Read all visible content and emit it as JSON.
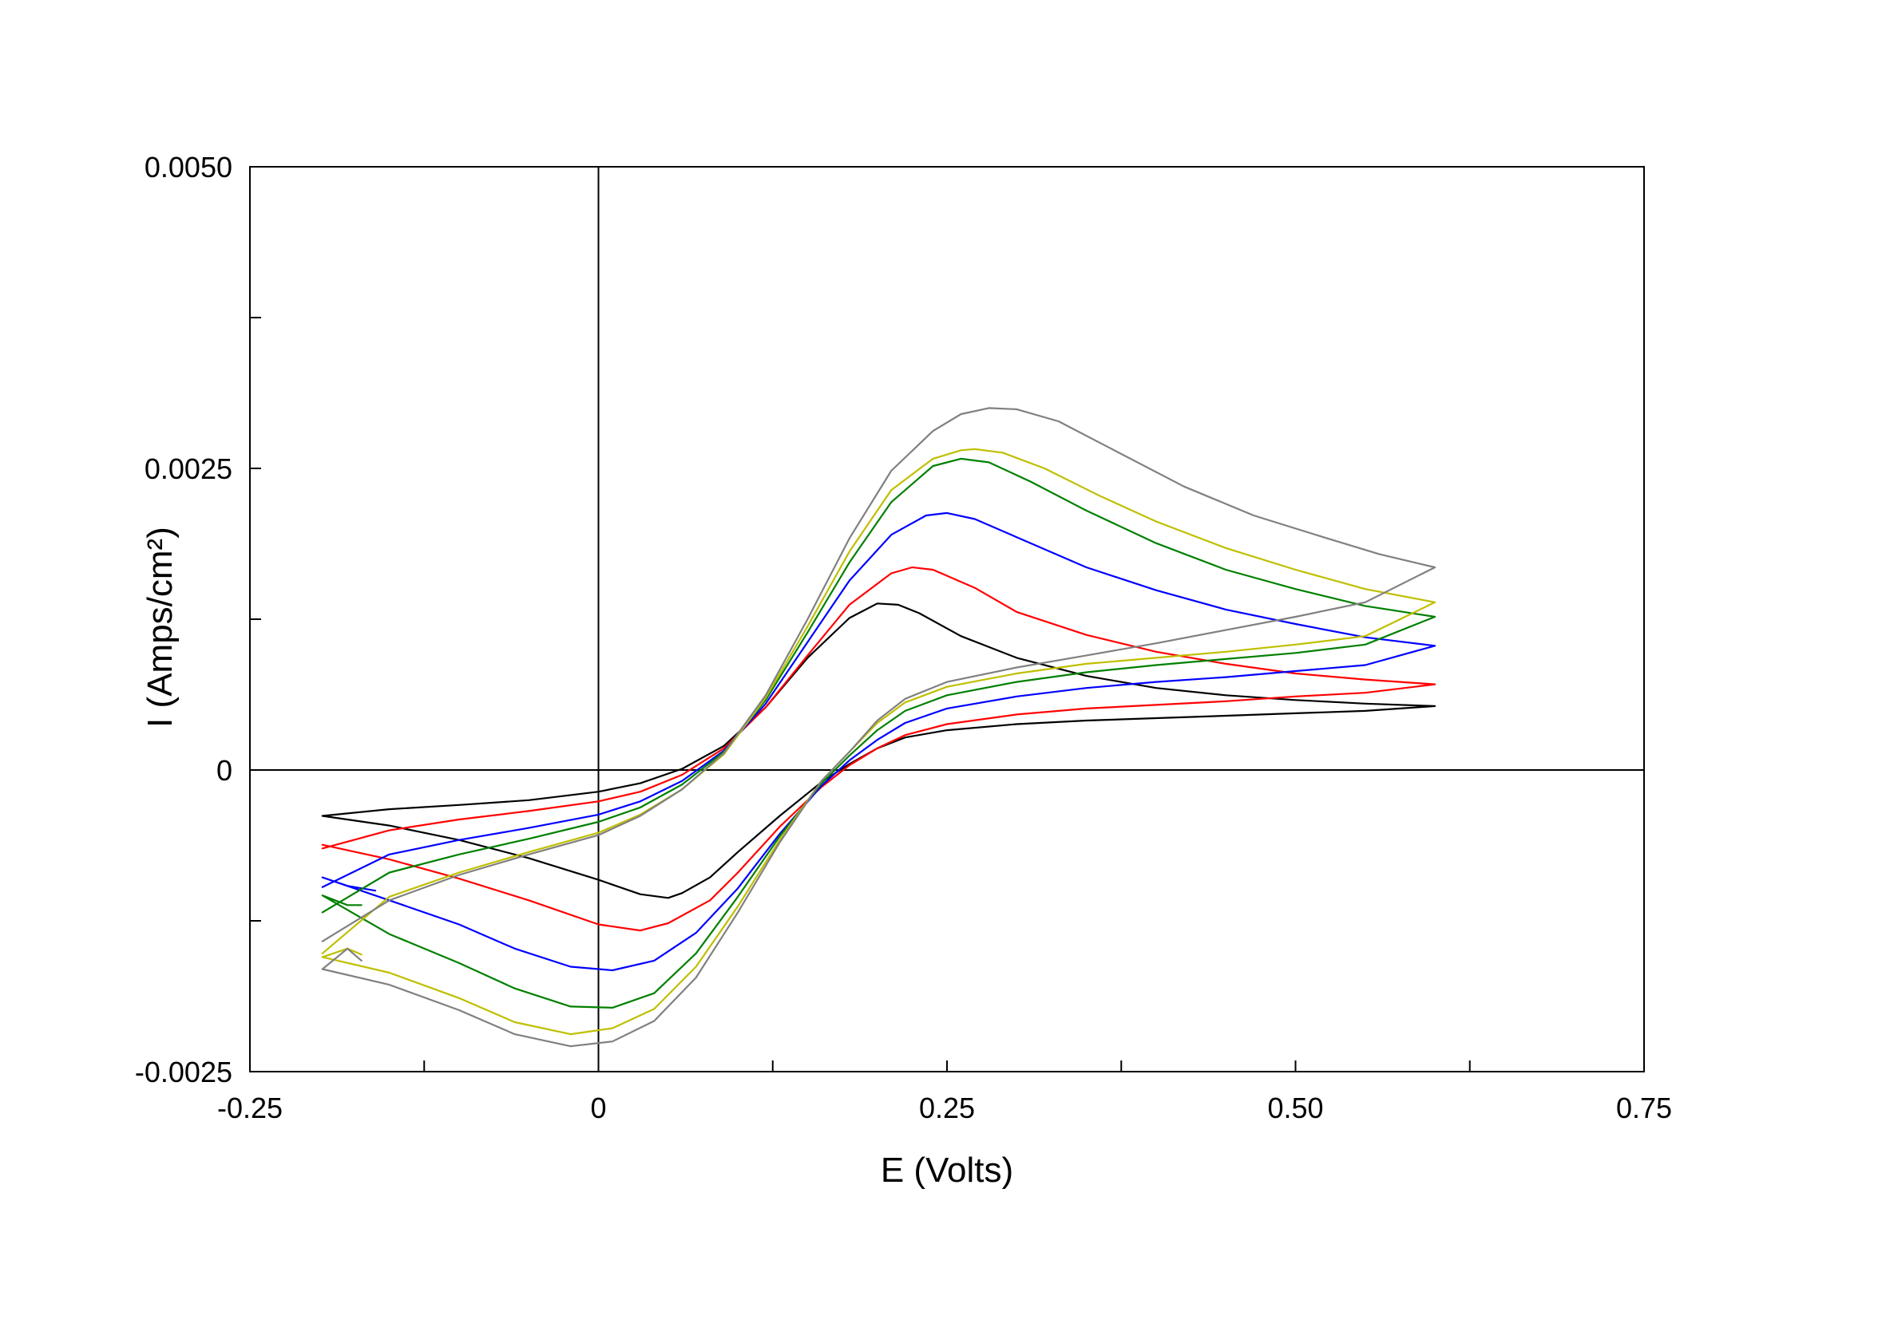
{
  "chart_data": {
    "type": "line",
    "title": "",
    "xlabel": "E (Volts)",
    "ylabel": "I (Amps/cm²)",
    "xlim": [
      -0.25,
      0.75
    ],
    "ylim": [
      -0.0025,
      0.005
    ],
    "x_ticks": [
      {
        "value": -0.25,
        "label": "-0.25"
      },
      {
        "value": 0,
        "label": "0"
      },
      {
        "value": 0.25,
        "label": "0.25"
      },
      {
        "value": 0.5,
        "label": "0.50"
      },
      {
        "value": 0.75,
        "label": "0.75"
      }
    ],
    "x_minor_ticks": [
      -0.125,
      0.125,
      0.375,
      0.625
    ],
    "y_ticks": [
      {
        "value": -0.0025,
        "label": "-0.0025"
      },
      {
        "value": 0,
        "label": "0"
      },
      {
        "value": 0.0025,
        "label": "0.0025"
      },
      {
        "value": 0.005,
        "label": "0.0050"
      }
    ],
    "y_minor_ticks": [
      -0.00125,
      0.00125,
      0.00375
    ],
    "zero_lines": true,
    "grid": false,
    "legend": "none",
    "series": [
      {
        "color": "#000000",
        "points": [
          [
            -0.198,
            -0.00038
          ],
          [
            -0.15,
            -0.000325
          ],
          [
            -0.1,
            -0.00029
          ],
          [
            -0.05,
            -0.00025
          ],
          [
            0,
            -0.00018
          ],
          [
            0.03,
            -0.00011
          ],
          [
            0.06,
            1e-05
          ],
          [
            0.09,
            0.0002
          ],
          [
            0.12,
            0.00052
          ],
          [
            0.15,
            0.00093
          ],
          [
            0.18,
            0.00126
          ],
          [
            0.2,
            0.00138
          ],
          [
            0.215,
            0.00137
          ],
          [
            0.23,
            0.0013
          ],
          [
            0.26,
            0.00111
          ],
          [
            0.3,
            0.00093
          ],
          [
            0.35,
            0.00078
          ],
          [
            0.4,
            0.00068
          ],
          [
            0.45,
            0.00062
          ],
          [
            0.5,
            0.00058
          ],
          [
            0.55,
            0.00055
          ],
          [
            0.6,
            0.00053
          ],
          [
            0.55,
            0.00049
          ],
          [
            0.5,
            0.00047
          ],
          [
            0.45,
            0.00045
          ],
          [
            0.4,
            0.00043
          ],
          [
            0.35,
            0.00041
          ],
          [
            0.3,
            0.00038
          ],
          [
            0.25,
            0.00033
          ],
          [
            0.22,
            0.00027
          ],
          [
            0.2,
            0.00018
          ],
          [
            0.18,
            5e-05
          ],
          [
            0.16,
            -0.0001
          ],
          [
            0.13,
            -0.00038
          ],
          [
            0.1,
            -0.00068
          ],
          [
            0.08,
            -0.00089
          ],
          [
            0.06,
            -0.00102
          ],
          [
            0.05,
            -0.00106
          ],
          [
            0.03,
            -0.00103
          ],
          [
            0,
            -0.00091
          ],
          [
            -0.05,
            -0.00073
          ],
          [
            -0.1,
            -0.00058
          ],
          [
            -0.15,
            -0.00046
          ],
          [
            -0.198,
            -0.00038
          ]
        ]
      },
      {
        "color": "#ff0000",
        "points": [
          [
            -0.198,
            -0.00065
          ],
          [
            -0.15,
            -0.0005
          ],
          [
            -0.1,
            -0.00041
          ],
          [
            -0.05,
            -0.00034
          ],
          [
            0,
            -0.00026
          ],
          [
            0.03,
            -0.00018
          ],
          [
            0.06,
            -4e-05
          ],
          [
            0.09,
            0.00018
          ],
          [
            0.12,
            0.00052
          ],
          [
            0.15,
            0.00095
          ],
          [
            0.18,
            0.00137
          ],
          [
            0.21,
            0.00163
          ],
          [
            0.225,
            0.00168
          ],
          [
            0.24,
            0.00166
          ],
          [
            0.27,
            0.00151
          ],
          [
            0.3,
            0.00131
          ],
          [
            0.35,
            0.00112
          ],
          [
            0.4,
            0.00098
          ],
          [
            0.45,
            0.00088
          ],
          [
            0.5,
            0.0008
          ],
          [
            0.55,
            0.00075
          ],
          [
            0.6,
            0.00071
          ],
          [
            0.55,
            0.00064
          ],
          [
            0.5,
            0.00061
          ],
          [
            0.45,
            0.00057
          ],
          [
            0.4,
            0.00054
          ],
          [
            0.35,
            0.00051
          ],
          [
            0.3,
            0.00046
          ],
          [
            0.25,
            0.00038
          ],
          [
            0.22,
            0.00029
          ],
          [
            0.2,
            0.00018
          ],
          [
            0.18,
            4e-05
          ],
          [
            0.16,
            -0.00014
          ],
          [
            0.13,
            -0.00047
          ],
          [
            0.1,
            -0.00085
          ],
          [
            0.08,
            -0.00108
          ],
          [
            0.05,
            -0.00127
          ],
          [
            0.03,
            -0.00133
          ],
          [
            0,
            -0.00128
          ],
          [
            -0.05,
            -0.00108
          ],
          [
            -0.1,
            -0.0009
          ],
          [
            -0.15,
            -0.00074
          ],
          [
            -0.198,
            -0.00062
          ]
        ]
      },
      {
        "color": "#0000ff",
        "points": [
          [
            -0.198,
            -0.00097
          ],
          [
            -0.15,
            -0.0007
          ],
          [
            -0.1,
            -0.00058
          ],
          [
            -0.05,
            -0.00048
          ],
          [
            0,
            -0.00037
          ],
          [
            0.03,
            -0.00026
          ],
          [
            0.06,
            -9e-05
          ],
          [
            0.09,
            0.00016
          ],
          [
            0.12,
            0.00055
          ],
          [
            0.15,
            0.00106
          ],
          [
            0.18,
            0.00157
          ],
          [
            0.21,
            0.00195
          ],
          [
            0.235,
            0.00211
          ],
          [
            0.25,
            0.00213
          ],
          [
            0.27,
            0.00208
          ],
          [
            0.3,
            0.00193
          ],
          [
            0.35,
            0.00168
          ],
          [
            0.4,
            0.00149
          ],
          [
            0.45,
            0.00133
          ],
          [
            0.5,
            0.00121
          ],
          [
            0.55,
            0.0011
          ],
          [
            0.6,
            0.00103
          ],
          [
            0.55,
            0.00087
          ],
          [
            0.5,
            0.00082
          ],
          [
            0.45,
            0.00077
          ],
          [
            0.4,
            0.00073
          ],
          [
            0.35,
            0.00068
          ],
          [
            0.3,
            0.00061
          ],
          [
            0.25,
            0.00051
          ],
          [
            0.22,
            0.00039
          ],
          [
            0.2,
            0.00025
          ],
          [
            0.18,
            8e-05
          ],
          [
            0.16,
            -0.00013
          ],
          [
            0.13,
            -0.00053
          ],
          [
            0.1,
            -0.00098
          ],
          [
            0.07,
            -0.00135
          ],
          [
            0.04,
            -0.00158
          ],
          [
            0.01,
            -0.00166
          ],
          [
            -0.02,
            -0.00163
          ],
          [
            -0.06,
            -0.00148
          ],
          [
            -0.1,
            -0.00128
          ],
          [
            -0.15,
            -0.00108
          ],
          [
            -0.198,
            -0.00089
          ],
          [
            -0.18,
            -0.00096
          ],
          [
            -0.16,
            -0.001
          ]
        ]
      },
      {
        "color": "#008000",
        "points": [
          [
            -0.198,
            -0.00118
          ],
          [
            -0.15,
            -0.00085
          ],
          [
            -0.1,
            -0.0007
          ],
          [
            -0.05,
            -0.00057
          ],
          [
            0,
            -0.00043
          ],
          [
            0.03,
            -0.00031
          ],
          [
            0.06,
            -0.00012
          ],
          [
            0.09,
            0.00015
          ],
          [
            0.12,
            0.00058
          ],
          [
            0.15,
            0.00114
          ],
          [
            0.18,
            0.00172
          ],
          [
            0.21,
            0.00222
          ],
          [
            0.24,
            0.00252
          ],
          [
            0.26,
            0.00258
          ],
          [
            0.28,
            0.00255
          ],
          [
            0.31,
            0.00239
          ],
          [
            0.35,
            0.00215
          ],
          [
            0.4,
            0.00188
          ],
          [
            0.45,
            0.00166
          ],
          [
            0.5,
            0.0015
          ],
          [
            0.55,
            0.00136
          ],
          [
            0.6,
            0.00127
          ],
          [
            0.55,
            0.00104
          ],
          [
            0.5,
            0.00097
          ],
          [
            0.45,
            0.00092
          ],
          [
            0.4,
            0.00087
          ],
          [
            0.35,
            0.00081
          ],
          [
            0.3,
            0.00073
          ],
          [
            0.25,
            0.00062
          ],
          [
            0.22,
            0.00049
          ],
          [
            0.2,
            0.00033
          ],
          [
            0.18,
            0.00012
          ],
          [
            0.16,
            -0.00011
          ],
          [
            0.13,
            -0.00055
          ],
          [
            0.1,
            -0.00105
          ],
          [
            0.07,
            -0.00152
          ],
          [
            0.04,
            -0.00185
          ],
          [
            0.01,
            -0.00197
          ],
          [
            -0.02,
            -0.00196
          ],
          [
            -0.06,
            -0.00181
          ],
          [
            -0.1,
            -0.0016
          ],
          [
            -0.15,
            -0.00136
          ],
          [
            -0.198,
            -0.00104
          ],
          [
            -0.18,
            -0.00112
          ],
          [
            -0.17,
            -0.00112
          ]
        ]
      },
      {
        "color": "#bfbf00",
        "points": [
          [
            -0.198,
            -0.00152
          ],
          [
            -0.15,
            -0.00105
          ],
          [
            -0.1,
            -0.00085
          ],
          [
            -0.05,
            -0.00068
          ],
          [
            0,
            -0.00052
          ],
          [
            0.03,
            -0.00037
          ],
          [
            0.06,
            -0.00016
          ],
          [
            0.09,
            0.00013
          ],
          [
            0.12,
            0.0006
          ],
          [
            0.15,
            0.00119
          ],
          [
            0.18,
            0.00181
          ],
          [
            0.21,
            0.00232
          ],
          [
            0.24,
            0.00258
          ],
          [
            0.26,
            0.00265
          ],
          [
            0.27,
            0.00266
          ],
          [
            0.29,
            0.00263
          ],
          [
            0.32,
            0.0025
          ],
          [
            0.36,
            0.00227
          ],
          [
            0.4,
            0.00206
          ],
          [
            0.45,
            0.00184
          ],
          [
            0.5,
            0.00166
          ],
          [
            0.55,
            0.0015
          ],
          [
            0.6,
            0.00139
          ],
          [
            0.55,
            0.00111
          ],
          [
            0.5,
            0.00104
          ],
          [
            0.45,
            0.00098
          ],
          [
            0.4,
            0.00093
          ],
          [
            0.35,
            0.00088
          ],
          [
            0.3,
            0.0008
          ],
          [
            0.25,
            0.00069
          ],
          [
            0.22,
            0.00056
          ],
          [
            0.2,
            0.00039
          ],
          [
            0.18,
            0.00015
          ],
          [
            0.16,
            -9e-05
          ],
          [
            0.13,
            -0.00058
          ],
          [
            0.1,
            -0.00113
          ],
          [
            0.07,
            -0.00163
          ],
          [
            0.04,
            -0.00198
          ],
          [
            0.01,
            -0.00214
          ],
          [
            -0.02,
            -0.00219
          ],
          [
            -0.06,
            -0.00209
          ],
          [
            -0.1,
            -0.00189
          ],
          [
            -0.15,
            -0.00168
          ],
          [
            -0.198,
            -0.00155
          ],
          [
            -0.18,
            -0.00148
          ],
          [
            -0.17,
            -0.00153
          ]
        ]
      },
      {
        "color": "#808080",
        "points": [
          [
            -0.198,
            -0.00142
          ],
          [
            -0.15,
            -0.00108
          ],
          [
            -0.1,
            -0.00087
          ],
          [
            -0.05,
            -0.0007
          ],
          [
            0,
            -0.00054
          ],
          [
            0.03,
            -0.00038
          ],
          [
            0.06,
            -0.00016
          ],
          [
            0.09,
            0.00014
          ],
          [
            0.12,
            0.00062
          ],
          [
            0.15,
            0.00125
          ],
          [
            0.18,
            0.00192
          ],
          [
            0.21,
            0.00248
          ],
          [
            0.24,
            0.00281
          ],
          [
            0.26,
            0.00295
          ],
          [
            0.28,
            0.003
          ],
          [
            0.3,
            0.00299
          ],
          [
            0.33,
            0.00289
          ],
          [
            0.37,
            0.00265
          ],
          [
            0.42,
            0.00235
          ],
          [
            0.47,
            0.00211
          ],
          [
            0.52,
            0.00193
          ],
          [
            0.56,
            0.00179
          ],
          [
            0.6,
            0.00168
          ],
          [
            0.55,
            0.00139
          ],
          [
            0.5,
            0.00127
          ],
          [
            0.45,
            0.00116
          ],
          [
            0.4,
            0.00105
          ],
          [
            0.35,
            0.00095
          ],
          [
            0.3,
            0.00085
          ],
          [
            0.25,
            0.00073
          ],
          [
            0.22,
            0.00059
          ],
          [
            0.2,
            0.00041
          ],
          [
            0.18,
            0.00015
          ],
          [
            0.16,
            -9e-05
          ],
          [
            0.13,
            -0.0006
          ],
          [
            0.1,
            -0.00118
          ],
          [
            0.07,
            -0.00172
          ],
          [
            0.04,
            -0.00208
          ],
          [
            0.01,
            -0.00225
          ],
          [
            -0.02,
            -0.00229
          ],
          [
            -0.06,
            -0.00219
          ],
          [
            -0.1,
            -0.00199
          ],
          [
            -0.15,
            -0.00178
          ],
          [
            -0.198,
            -0.00165
          ],
          [
            -0.18,
            -0.00148
          ],
          [
            -0.17,
            -0.00158
          ]
        ]
      }
    ]
  }
}
